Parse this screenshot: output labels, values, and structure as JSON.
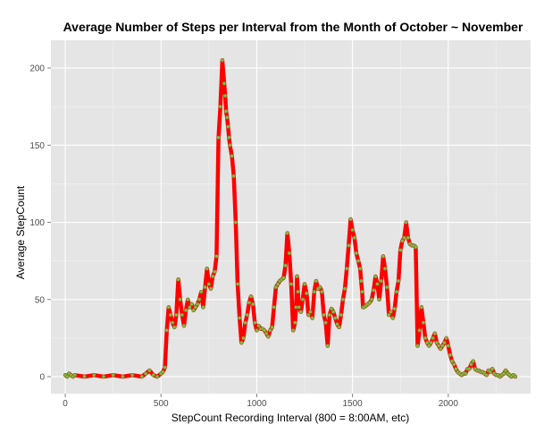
{
  "chart_data": {
    "type": "line",
    "title": "Average Number of Steps per Interval from the Month of October ~ November",
    "xlabel": "StepCount Recording Interval (800 = 8:00AM, etc)",
    "ylabel": "Average StepCount",
    "xlim": [
      -75,
      2430
    ],
    "ylim": [
      -11,
      218
    ],
    "xticks": [
      0,
      500,
      1000,
      1500,
      2000
    ],
    "xtick_labels": [
      "0",
      "500",
      "1000",
      "1500",
      "2000"
    ],
    "yticks": [
      0,
      50,
      100,
      150,
      200
    ],
    "ytick_labels": [
      "0",
      "50",
      "100",
      "150",
      "200"
    ],
    "grid": true,
    "panel_background": "#e5e5e5",
    "grid_color": "#ffffff",
    "line_color": "#ff0000",
    "point_fill": "#7fbf3f",
    "point_stroke": "#8b6a2a",
    "series": [
      {
        "x": [
          0,
          10,
          20,
          30,
          40,
          50,
          100,
          150,
          200,
          250,
          300,
          350,
          400,
          420,
          440,
          460,
          480,
          500,
          510,
          520,
          530,
          540,
          550,
          560,
          570,
          580,
          590,
          600,
          610,
          620,
          630,
          640,
          650,
          660,
          670,
          680,
          690,
          700,
          710,
          720,
          730,
          740,
          750,
          760,
          770,
          780,
          790,
          800,
          810,
          820,
          830,
          835,
          840,
          845,
          850,
          855,
          860,
          870,
          880,
          890,
          900,
          910,
          920,
          930,
          940,
          950,
          960,
          970,
          980,
          990,
          1000,
          1010,
          1020,
          1030,
          1040,
          1050,
          1060,
          1070,
          1080,
          1090,
          1100,
          1110,
          1120,
          1130,
          1140,
          1150,
          1160,
          1170,
          1180,
          1190,
          1200,
          1205,
          1210,
          1215,
          1220,
          1230,
          1240,
          1250,
          1260,
          1270,
          1280,
          1290,
          1300,
          1310,
          1320,
          1330,
          1340,
          1350,
          1360,
          1370,
          1380,
          1390,
          1400,
          1410,
          1420,
          1430,
          1440,
          1450,
          1460,
          1470,
          1480,
          1490,
          1500,
          1510,
          1520,
          1530,
          1540,
          1545,
          1550,
          1555,
          1560,
          1570,
          1580,
          1590,
          1600,
          1610,
          1620,
          1630,
          1640,
          1650,
          1660,
          1670,
          1680,
          1690,
          1700,
          1710,
          1720,
          1730,
          1740,
          1750,
          1760,
          1770,
          1780,
          1790,
          1800,
          1810,
          1820,
          1830,
          1840,
          1850,
          1860,
          1870,
          1880,
          1890,
          1900,
          1910,
          1920,
          1930,
          1940,
          1950,
          1960,
          1970,
          1980,
          1990,
          2000,
          2010,
          2020,
          2030,
          2040,
          2050,
          2060,
          2070,
          2080,
          2090,
          2100,
          2110,
          2120,
          2130,
          2140,
          2150,
          2160,
          2170,
          2180,
          2190,
          2200,
          2210,
          2220,
          2230,
          2240,
          2250,
          2260,
          2270,
          2280,
          2290,
          2300,
          2310,
          2320,
          2330,
          2340,
          2350
        ],
        "y": [
          1,
          0,
          2,
          1,
          0,
          1,
          0,
          1,
          0,
          1,
          0,
          1,
          0,
          2,
          4,
          1,
          0,
          2,
          3,
          6,
          30,
          45,
          40,
          35,
          32,
          40,
          63,
          50,
          40,
          33,
          43,
          50,
          45,
          47,
          43,
          45,
          47,
          50,
          55,
          45,
          58,
          70,
          60,
          57,
          65,
          68,
          78,
          155,
          175,
          205,
          190,
          182,
          172,
          168,
          162,
          155,
          150,
          143,
          130,
          100,
          60,
          38,
          22,
          25,
          35,
          40,
          48,
          52,
          47,
          35,
          30,
          33,
          31,
          31,
          30,
          28,
          26,
          30,
          32,
          45,
          58,
          60,
          62,
          63,
          64,
          72,
          93,
          80,
          60,
          30,
          35,
          45,
          65,
          55,
          45,
          42,
          50,
          60,
          54,
          40,
          42,
          38,
          55,
          62,
          57,
          58,
          55,
          40,
          35,
          20,
          40,
          44,
          42,
          38,
          34,
          32,
          40,
          50,
          57,
          70,
          85,
          102,
          95,
          90,
          80,
          75,
          70,
          62,
          55,
          45,
          45,
          46,
          47,
          48,
          50,
          56,
          65,
          60,
          50,
          62,
          78,
          70,
          58,
          40,
          42,
          38,
          44,
          55,
          62,
          82,
          88,
          90,
          100,
          90,
          86,
          85,
          85,
          84,
          20,
          30,
          45,
          35,
          25,
          22,
          20,
          22,
          25,
          28,
          22,
          20,
          18,
          20,
          22,
          25,
          20,
          14,
          10,
          8,
          5,
          3,
          2,
          1,
          2,
          2,
          5,
          5,
          8,
          10,
          5,
          4,
          4,
          3,
          3,
          2,
          1,
          4,
          3,
          5,
          2,
          1,
          1,
          0,
          1,
          2,
          4,
          2,
          1,
          0,
          1,
          0
        ]
      }
    ]
  }
}
